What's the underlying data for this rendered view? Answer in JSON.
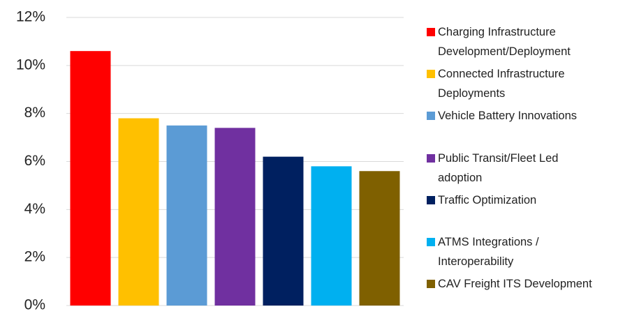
{
  "chart_data": {
    "type": "bar",
    "categories": [
      "Charging Infrastructure Development/Deployment",
      "Connected Infrastructure Deployments",
      "Vehicle Battery Innovations",
      "Public Transit/Fleet Led adoption",
      "Traffic Optimization",
      "ATMS Integrations / Interoperability",
      "CAV Freight ITS Development"
    ],
    "values": [
      10.6,
      7.8,
      7.5,
      7.4,
      6.2,
      5.8,
      5.6
    ],
    "colors": [
      "#ff0000",
      "#ffc000",
      "#5b9bd5",
      "#7030a0",
      "#002060",
      "#00b0f0",
      "#7f6000"
    ],
    "ylim": [
      0,
      12
    ],
    "yticks": [
      {
        "value": 0,
        "label": "0%"
      },
      {
        "value": 2,
        "label": "2%"
      },
      {
        "value": 4,
        "label": "4%"
      },
      {
        "value": 6,
        "label": "6%"
      },
      {
        "value": 8,
        "label": "8%"
      },
      {
        "value": 10,
        "label": "10%"
      },
      {
        "value": 12,
        "label": "12%"
      }
    ],
    "grid": true,
    "legend": "right"
  }
}
